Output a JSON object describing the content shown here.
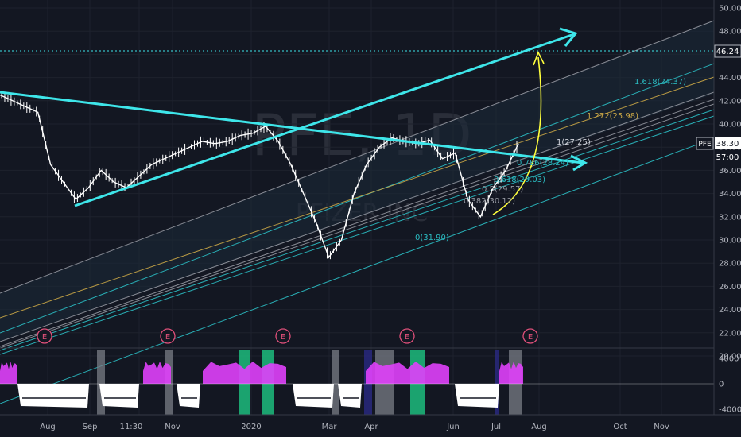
{
  "symbol": "PFE",
  "timeframe": "1D",
  "company": "PFIZER INC",
  "colors": {
    "background": "#131722",
    "grid": "#1e222d",
    "price": "#ffffff",
    "trend": "#3ee6ea",
    "fib": "#2bbec4",
    "fib_gray": "#9598a1",
    "fib_gold": "#c9a646",
    "arc": "#ffff3c",
    "ind_pink": "#e040fb",
    "ind_green": "#1fd38a",
    "ind_gray": "#7a7d85",
    "ind_navy": "#2b2b8a",
    "earnings": "#e0507a"
  },
  "price_axis": {
    "ticks": [
      "50.00",
      "48.00",
      "46.00",
      "44.00",
      "42.00",
      "40.00",
      "38.00",
      "36.00",
      "34.00",
      "32.00",
      "30.00",
      "28.00",
      "26.00",
      "24.00",
      "22.00",
      "20.00"
    ],
    "target_label": "46.24",
    "symbol_tag": "PFE",
    "last_price": "38.30",
    "countdown": "57:00"
  },
  "indicator_axis": {
    "ticks": [
      "4000",
      "0",
      "-4000"
    ]
  },
  "time_axis": {
    "labels": [
      "Aug",
      "Sep",
      "11:30",
      "Nov",
      "2020",
      "Mar",
      "Apr",
      "Jun",
      "Jul",
      "Aug",
      "Oct",
      "Nov"
    ]
  },
  "fib_labels": [
    "1.618(24.37)",
    "1.272(25.98)",
    "1(27.25)",
    "0.786(28.24)",
    "0.618(29.03)",
    "0.5(29.57)",
    "0.382(30.12)",
    "0(31.90)"
  ],
  "earnings_marker": "E",
  "chart_data": {
    "type": "line",
    "series": [
      {
        "name": "PFE",
        "x_index": [
          0,
          8,
          16,
          24,
          32,
          40,
          48,
          56,
          64,
          72,
          80,
          88,
          96,
          104,
          112,
          120,
          128,
          136,
          144,
          152,
          160,
          168,
          176,
          184,
          192,
          200,
          208,
          216,
          224,
          232,
          240,
          248,
          256,
          264,
          272,
          280,
          288,
          296,
          304,
          312,
          320,
          328
        ],
        "values": [
          42.5,
          42.0,
          41.5,
          41.0,
          36.5,
          35.0,
          33.5,
          34.5,
          36.0,
          35.0,
          34.5,
          35.5,
          36.5,
          37.0,
          37.5,
          38.0,
          38.5,
          38.3,
          38.5,
          39.0,
          39.2,
          39.8,
          38.5,
          36.5,
          34.0,
          31.5,
          28.5,
          30.0,
          34.0,
          36.5,
          38.0,
          38.8,
          38.5,
          38.3,
          38.6,
          37.0,
          37.5,
          33.5,
          32.0,
          34.5,
          36.0,
          38.3
        ]
      }
    ],
    "ylim": [
      19,
      51
    ],
    "target": 46.24,
    "last": 38.3,
    "fib_levels": [
      {
        "ratio": "0",
        "price": 31.9
      },
      {
        "ratio": "0.382",
        "price": 30.12
      },
      {
        "ratio": "0.5",
        "price": 29.57
      },
      {
        "ratio": "0.618",
        "price": 29.03
      },
      {
        "ratio": "0.786",
        "price": 28.24
      },
      {
        "ratio": "1",
        "price": 27.25
      },
      {
        "ratio": "1.272",
        "price": 25.98
      },
      {
        "ratio": "1.618",
        "price": 24.37
      }
    ],
    "indicator_ylim": [
      -5000,
      5000
    ],
    "grid": true,
    "legend": "none"
  }
}
